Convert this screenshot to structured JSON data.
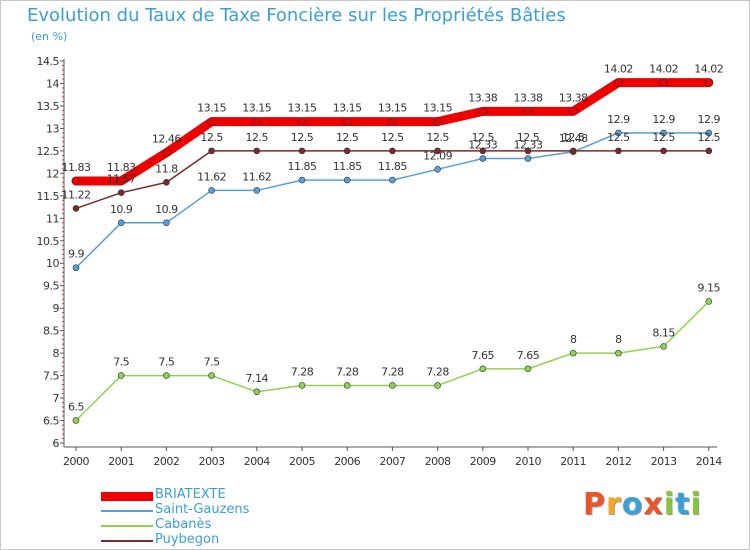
{
  "chart_data": {
    "type": "line",
    "title": "Evolution du Taux de Taxe Foncière sur les Propriétés Bâties",
    "subtitle": "(en %)",
    "ylim": [
      6,
      14.5
    ],
    "yticks": [
      "6",
      "6.5",
      "7",
      "7.5",
      "8",
      "8.5",
      "9",
      "9.5",
      "10",
      "10.5",
      "11",
      "11.5",
      "12",
      "12.5",
      "13",
      "13.5",
      "14",
      "14.5"
    ],
    "categories": [
      "2000",
      "2001",
      "2002",
      "2003",
      "2004",
      "2005",
      "2006",
      "2007",
      "2008",
      "2009",
      "2010",
      "2011",
      "2012",
      "2013",
      "2014"
    ],
    "grid": false,
    "legend_position": "bottom-left",
    "series": [
      {
        "name": "BRIATEXTE",
        "color": "#ee0000",
        "values": [
          11.83,
          11.83,
          12.46,
          13.15,
          13.15,
          13.15,
          13.15,
          13.15,
          13.15,
          13.38,
          13.38,
          13.38,
          14.02,
          14.02,
          14.02
        ],
        "labels": [
          "11.83",
          "11.83",
          "12.46",
          "13.15",
          "13.15",
          "13.15",
          "13.15",
          "13.15",
          "13.15",
          "13.38",
          "13.38",
          "13.38",
          "14.02",
          "14.02",
          "14.02"
        ]
      },
      {
        "name": "Saint-Gauzens",
        "color": "#5a9fd4",
        "values": [
          9.9,
          10.9,
          10.9,
          11.62,
          11.62,
          11.85,
          11.85,
          11.85,
          12.09,
          12.33,
          12.33,
          12.48,
          12.9,
          12.9,
          12.9
        ],
        "labels": [
          "9.9",
          "10.9",
          "10.9",
          "11.62",
          "11.62",
          "11.85",
          "11.85",
          "11.85",
          "12.09",
          "12.33",
          "12.33",
          "12.48",
          "12.9",
          "12.9",
          "12.9"
        ]
      },
      {
        "name": "Cabanès",
        "color": "#8fd24e",
        "values": [
          6.5,
          7.5,
          7.5,
          7.5,
          7.14,
          7.28,
          7.28,
          7.28,
          7.28,
          7.65,
          7.65,
          8,
          8,
          8.15,
          9.15
        ],
        "labels": [
          "6.5",
          "7.5",
          "7.5",
          "7.5",
          "7.14",
          "7.28",
          "7.28",
          "7.28",
          "7.28",
          "7.65",
          "7.65",
          "8",
          "8",
          "8.15",
          "9.15"
        ]
      },
      {
        "name": "Puybegon",
        "color": "#7a2a2a",
        "values": [
          11.22,
          11.57,
          11.8,
          12.5,
          12.5,
          12.5,
          12.5,
          12.5,
          12.5,
          12.5,
          12.5,
          12.5,
          12.5,
          12.5,
          12.5
        ],
        "labels": [
          "11.22",
          "11.57",
          "11.8",
          "12.5",
          "12.5",
          "12.5",
          "12.5",
          "12.5",
          "12.5",
          "12.5",
          "12.5",
          "12.5",
          "12.5",
          "12.5",
          "12.5"
        ]
      }
    ]
  },
  "brand": {
    "letters": [
      "P",
      "r",
      "o",
      "x",
      "i",
      "t",
      "i"
    ],
    "colors": [
      "#e8552a",
      "#f6a623",
      "#3aa0d8",
      "#e8552a",
      "#8ac43f",
      "#3aa0d8",
      "#8ac43f"
    ]
  }
}
